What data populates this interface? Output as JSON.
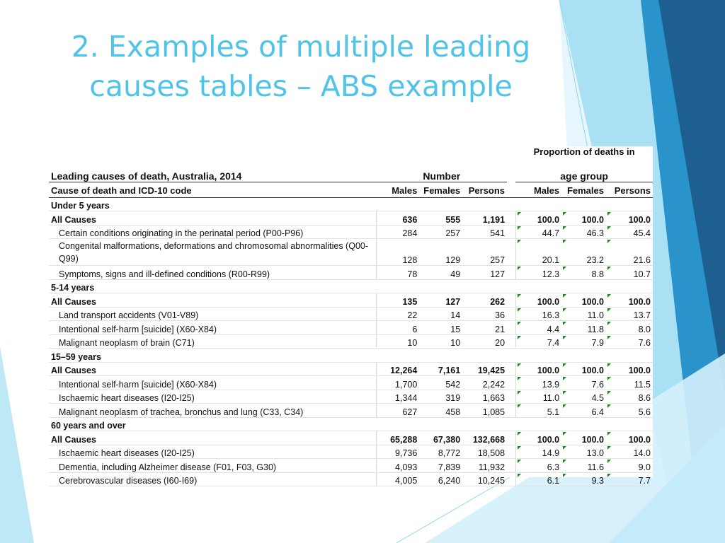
{
  "slide": {
    "title_line1": "2. Examples of multiple leading",
    "title_line2": "causes tables – ABS example"
  },
  "table": {
    "caption": "Leading causes of death, Australia, 2014",
    "group_number": "Number",
    "group_proportion_line1": "Proportion of deaths in",
    "group_proportion_line2": "age group",
    "col_cause": "Cause of death and ICD-10 code",
    "col_males": "Males",
    "col_females": "Females",
    "col_persons": "Persons",
    "col_p_males": "Males",
    "col_p_females": "Females",
    "col_p_persons": "Persons",
    "rows": [
      {
        "type": "section",
        "label": "Under 5 years"
      },
      {
        "type": "all",
        "label": "All Causes",
        "m": "636",
        "f": "555",
        "p": "1,191",
        "pm": "100.0",
        "pf": "100.0",
        "pp": "100.0"
      },
      {
        "type": "item",
        "label": "Certain conditions originating in the perinatal period (P00-P96)",
        "m": "284",
        "f": "257",
        "p": "541",
        "pm": "44.7",
        "pf": "46.3",
        "pp": "45.4"
      },
      {
        "type": "item2",
        "label": "Congenital malformations, deformations and chromosomal abnormalities (Q00-Q99)",
        "m": "128",
        "f": "129",
        "p": "257",
        "pm": "20.1",
        "pf": "23.2",
        "pp": "21.6"
      },
      {
        "type": "item",
        "label": "Symptoms, signs and ill-defined conditions (R00-R99)",
        "m": "78",
        "f": "49",
        "p": "127",
        "pm": "12.3",
        "pf": "8.8",
        "pp": "10.7"
      },
      {
        "type": "section",
        "label": "5-14 years"
      },
      {
        "type": "all",
        "label": "All Causes",
        "m": "135",
        "f": "127",
        "p": "262",
        "pm": "100.0",
        "pf": "100.0",
        "pp": "100.0"
      },
      {
        "type": "item",
        "label": "Land transport accidents (V01-V89)",
        "m": "22",
        "f": "14",
        "p": "36",
        "pm": "16.3",
        "pf": "11.0",
        "pp": "13.7"
      },
      {
        "type": "item",
        "label": "Intentional self-harm [suicide] (X60-X84)",
        "m": "6",
        "f": "15",
        "p": "21",
        "pm": "4.4",
        "pf": "11.8",
        "pp": "8.0"
      },
      {
        "type": "item",
        "label": "Malignant neoplasm of brain (C71)",
        "m": "10",
        "f": "10",
        "p": "20",
        "pm": "7.4",
        "pf": "7.9",
        "pp": "7.6"
      },
      {
        "type": "section",
        "label": "15–59 years"
      },
      {
        "type": "all",
        "label": "All Causes",
        "m": "12,264",
        "f": "7,161",
        "p": "19,425",
        "pm": "100.0",
        "pf": "100.0",
        "pp": "100.0"
      },
      {
        "type": "item",
        "label": "Intentional self-harm [suicide] (X60-X84)",
        "m": "1,700",
        "f": "542",
        "p": "2,242",
        "pm": "13.9",
        "pf": "7.6",
        "pp": "11.5"
      },
      {
        "type": "item",
        "label": "Ischaemic heart diseases (I20-I25)",
        "m": "1,344",
        "f": "319",
        "p": "1,663",
        "pm": "11.0",
        "pf": "4.5",
        "pp": "8.6"
      },
      {
        "type": "item",
        "label": "Malignant neoplasm of trachea, bronchus and lung (C33, C34)",
        "m": "627",
        "f": "458",
        "p": "1,085",
        "pm": "5.1",
        "pf": "6.4",
        "pp": "5.6"
      },
      {
        "type": "section",
        "label": "60 years and over"
      },
      {
        "type": "all",
        "label": "All Causes",
        "m": "65,288",
        "f": "67,380",
        "p": "132,668",
        "pm": "100.0",
        "pf": "100.0",
        "pp": "100.0"
      },
      {
        "type": "item",
        "label": "Ischaemic heart diseases (I20-I25)",
        "m": "9,736",
        "f": "8,772",
        "p": "18,508",
        "pm": "14.9",
        "pf": "13.0",
        "pp": "14.0"
      },
      {
        "type": "item",
        "label": "Dementia, including Alzheimer disease (F01, F03, G30)",
        "m": "4,093",
        "f": "7,839",
        "p": "11,932",
        "pm": "6.3",
        "pf": "11.6",
        "pp": "9.0"
      },
      {
        "type": "item",
        "label": "Cerebrovascular diseases (I60-I69)",
        "m": "4,005",
        "f": "6,240",
        "p": "10,245",
        "pm": "6.1",
        "pf": "9.3",
        "pp": "7.7"
      }
    ]
  },
  "colors": {
    "title": "#4fc3e8",
    "accent_dark": "#1f6ea3",
    "accent_mid": "#2aa6d8",
    "accent_light": "#7fd3ee",
    "accent_pale": "#c6ecf8"
  }
}
